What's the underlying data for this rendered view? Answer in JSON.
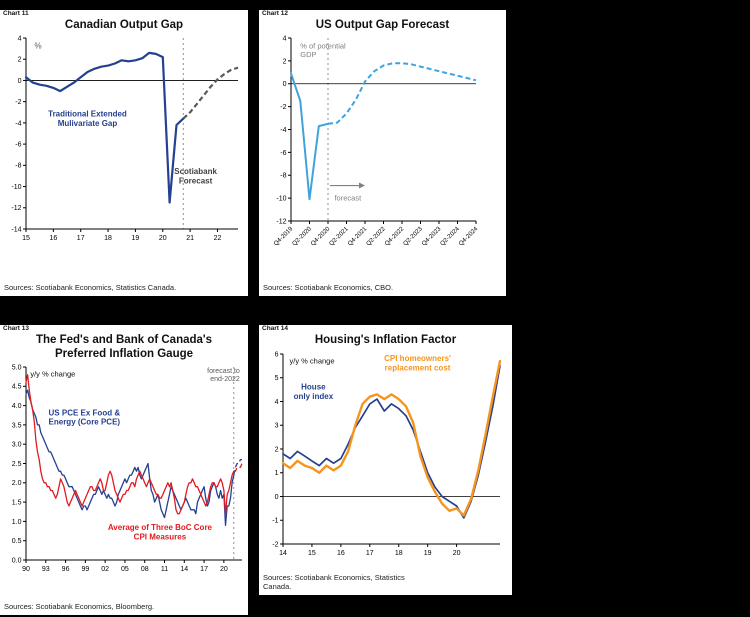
{
  "page": {
    "background": "#000000"
  },
  "chart_data": [
    {
      "type": "line",
      "corner_label": "Chart 11",
      "title": "Canadian Output Gap",
      "source": "Sources: Scotiabank Economics, Statistics Canada.",
      "ylabel": "%",
      "ylim": [
        -14,
        4
      ],
      "yticks": [
        4,
        2,
        0,
        -2,
        -4,
        -6,
        -8,
        -10,
        -12,
        -14
      ],
      "ydecimals": 0,
      "zero_line": true,
      "margins": {
        "l": 26,
        "r": 10,
        "t": 5,
        "b": 16
      },
      "x": {
        "count": 32,
        "rotate": false,
        "ticks": [
          {
            "i": 0,
            "label": "15"
          },
          {
            "i": 4,
            "label": "16"
          },
          {
            "i": 8,
            "label": "17"
          },
          {
            "i": 12,
            "label": "18"
          },
          {
            "i": 16,
            "label": "19"
          },
          {
            "i": 20,
            "label": "20"
          },
          {
            "i": 24,
            "label": "21"
          },
          {
            "i": 28,
            "label": "22"
          }
        ]
      },
      "vlines": [
        23
      ],
      "series": [
        {
          "name": "Traditional Extended Mulivariate Gap",
          "color": "#25408f",
          "dash_color": "#595959",
          "width": 2.2,
          "dash_from": 23,
          "values": [
            0.3,
            -0.2,
            -0.4,
            -0.5,
            -0.7,
            -1.0,
            -0.6,
            -0.2,
            0.3,
            0.8,
            1.1,
            1.3,
            1.4,
            1.6,
            1.9,
            1.8,
            1.9,
            2.1,
            2.6,
            2.5,
            2.2,
            -11.5,
            -4.2,
            -3.6,
            -3.0,
            -2.2,
            -1.4,
            -0.6,
            0.1,
            0.6,
            1.0,
            1.2
          ]
        }
      ],
      "annotations": [
        {
          "text": "%",
          "x": 0.04,
          "y": 3.0,
          "color": "#595959",
          "bold": false,
          "size": 8,
          "anchor": "start"
        },
        {
          "text": "Traditional Extended\nMulivariate Gap",
          "x": 0.29,
          "y": -3.4,
          "color": "#25408f",
          "bold": true,
          "size": 8,
          "anchor": "middle"
        },
        {
          "text": "Scotiabank\nForecast",
          "x": 0.8,
          "y": -8.8,
          "color": "#404040",
          "bold": true,
          "size": 8,
          "anchor": "middle"
        }
      ],
      "arrows": []
    },
    {
      "type": "line",
      "corner_label": "Chart 12",
      "title": "US Output Gap Forecast",
      "source": "Sources: Scotiabank Economics, CBO.",
      "ylabel": "% of potential GDP",
      "ylim": [
        -12,
        4
      ],
      "yticks": [
        4,
        2,
        0,
        -2,
        -4,
        -6,
        -8,
        -10,
        -12
      ],
      "ydecimals": 0,
      "zero_line": true,
      "margins": {
        "l": 32,
        "r": 30,
        "t": 5,
        "b": 42
      },
      "x": {
        "count": 21,
        "rotate": true,
        "ticks": [
          {
            "i": 0,
            "label": "Q4-2019"
          },
          {
            "i": 2,
            "label": "Q2-2020"
          },
          {
            "i": 4,
            "label": "Q4-2020"
          },
          {
            "i": 6,
            "label": "Q2-2021"
          },
          {
            "i": 8,
            "label": "Q4-2021"
          },
          {
            "i": 10,
            "label": "Q2-2022"
          },
          {
            "i": 12,
            "label": "Q4-2022"
          },
          {
            "i": 14,
            "label": "Q2-2023"
          },
          {
            "i": 16,
            "label": "Q4-2023"
          },
          {
            "i": 18,
            "label": "Q2-2024"
          },
          {
            "i": 20,
            "label": "Q4-2024"
          }
        ]
      },
      "vlines": [
        4
      ],
      "series": [
        {
          "name": "US output gap",
          "color": "#3fa3dc",
          "width": 2,
          "dash_from": 4,
          "values": [
            0.9,
            -1.5,
            -10.1,
            -3.7,
            -3.5,
            -3.4,
            -2.6,
            -1.4,
            0.2,
            1.1,
            1.6,
            1.8,
            1.8,
            1.7,
            1.5,
            1.3,
            1.1,
            0.9,
            0.7,
            0.5,
            0.3
          ]
        }
      ],
      "annotations": [
        {
          "text": "% of potential\nGDP",
          "x": 0.05,
          "y": 3.1,
          "color": "#808080",
          "bold": false,
          "size": 7.5,
          "anchor": "start"
        },
        {
          "text": "forecast",
          "x": 0.235,
          "y": -10.2,
          "color": "#808080",
          "bold": false,
          "size": 7.5,
          "anchor": "start"
        }
      ],
      "arrows": [
        {
          "x1": 0.21,
          "y1": -8.9,
          "x2": 0.4,
          "y2": -8.9,
          "color": "#808080"
        }
      ]
    },
    {
      "type": "line",
      "corner_label": "Chart 13",
      "title": "The Fed's and Bank of Canada's\nPreferred Inflation Gauge",
      "source": "Sources: Scotiabank Economics, Bloomberg.",
      "ylabel": "y/y % change",
      "ylim": [
        0,
        5
      ],
      "yticks": [
        5.0,
        4.5,
        4.0,
        3.5,
        3.0,
        2.5,
        2.0,
        1.5,
        1.0,
        0.5,
        0.0
      ],
      "ydecimals": 1,
      "zero_line": false,
      "margins": {
        "l": 26,
        "r": 6,
        "t": 5,
        "b": 14
      },
      "x": {
        "count": 132,
        "rotate": false,
        "ticks": [
          {
            "i": 0,
            "label": "90"
          },
          {
            "i": 12,
            "label": "93"
          },
          {
            "i": 24,
            "label": "96"
          },
          {
            "i": 36,
            "label": "99"
          },
          {
            "i": 48,
            "label": "02"
          },
          {
            "i": 60,
            "label": "05"
          },
          {
            "i": 72,
            "label": "08"
          },
          {
            "i": 84,
            "label": "11"
          },
          {
            "i": 96,
            "label": "14"
          },
          {
            "i": 108,
            "label": "17"
          },
          {
            "i": 120,
            "label": "20"
          }
        ]
      },
      "vlines": [
        126
      ],
      "series": [
        {
          "name": "US PCE Ex Food & Energy (Core PCE)",
          "color": "#25408f",
          "width": 1.3,
          "dash_from": 126,
          "values": [
            4.3,
            4.4,
            4.2,
            4.1,
            3.9,
            3.8,
            3.7,
            3.5,
            3.5,
            3.3,
            3.2,
            3.1,
            3.0,
            2.9,
            2.8,
            2.8,
            2.7,
            2.6,
            2.5,
            2.4,
            2.3,
            2.3,
            2.2,
            2.2,
            2.1,
            2.0,
            1.9,
            1.9,
            1.9,
            1.8,
            1.7,
            1.6,
            1.5,
            1.4,
            1.3,
            1.4,
            1.4,
            1.3,
            1.4,
            1.5,
            1.6,
            1.7,
            1.7,
            1.8,
            1.9,
            1.8,
            1.7,
            1.8,
            1.7,
            1.6,
            1.7,
            1.6,
            1.6,
            1.5,
            1.4,
            1.5,
            1.7,
            1.8,
            1.9,
            2.0,
            2.1,
            2.0,
            2.1,
            2.2,
            2.2,
            2.3,
            2.4,
            2.3,
            2.4,
            2.2,
            2.1,
            2.2,
            2.3,
            2.4,
            2.5,
            2.1,
            1.8,
            1.7,
            1.5,
            1.6,
            1.7,
            1.5,
            1.3,
            1.2,
            1.1,
            1.3,
            1.5,
            1.7,
            1.9,
            1.8,
            1.7,
            1.6,
            1.5,
            1.4,
            1.3,
            1.4,
            1.5,
            1.6,
            1.5,
            1.4,
            1.3,
            1.3,
            1.3,
            1.2,
            1.5,
            1.6,
            1.7,
            1.8,
            1.9,
            1.6,
            1.4,
            1.5,
            1.8,
            1.9,
            2.0,
            1.9,
            1.7,
            1.6,
            1.8,
            1.6,
            1.7,
            0.9,
            1.4,
            1.4,
            1.6,
            2.0,
            2.2,
            2.4,
            2.5,
            2.5,
            2.6,
            2.6
          ]
        },
        {
          "name": "Average of Three BoC Core CPI Measures",
          "color": "#e11b22",
          "width": 1.3,
          "dash_from": 126,
          "values": [
            4.6,
            4.8,
            4.4,
            4.1,
            3.9,
            3.6,
            3.1,
            2.8,
            2.6,
            2.3,
            2.1,
            2.0,
            2.0,
            1.9,
            1.9,
            1.8,
            1.8,
            1.7,
            1.6,
            1.7,
            1.9,
            2.1,
            2.0,
            1.9,
            1.7,
            1.5,
            1.4,
            1.5,
            1.6,
            1.7,
            1.8,
            1.7,
            1.6,
            1.5,
            1.4,
            1.5,
            1.6,
            1.7,
            1.8,
            1.9,
            1.9,
            1.8,
            1.8,
            1.9,
            2.0,
            2.1,
            2.0,
            1.8,
            1.8,
            2.0,
            2.2,
            2.3,
            2.2,
            2.0,
            1.8,
            1.7,
            1.6,
            1.5,
            1.6,
            1.7,
            1.7,
            1.8,
            1.8,
            1.9,
            2.0,
            2.0,
            1.9,
            2.1,
            2.2,
            2.3,
            2.2,
            2.1,
            2.0,
            1.9,
            2.0,
            2.1,
            2.0,
            1.9,
            1.8,
            1.7,
            1.7,
            1.6,
            1.6,
            1.7,
            1.8,
            1.9,
            2.0,
            1.9,
            2.0,
            1.8,
            1.6,
            1.3,
            1.2,
            1.2,
            1.3,
            1.4,
            1.5,
            1.7,
            1.9,
            2.0,
            2.0,
            2.1,
            2.0,
            1.9,
            1.9,
            1.8,
            1.7,
            1.6,
            1.5,
            1.4,
            1.5,
            1.7,
            1.9,
            2.0,
            2.0,
            1.9,
            1.9,
            2.0,
            2.1,
            2.0,
            1.8,
            1.2,
            1.7,
            1.8,
            2.0,
            2.2,
            2.3,
            2.3,
            2.4,
            2.4,
            2.4,
            2.5
          ]
        }
      ],
      "annotations": [
        {
          "text": "y/y % change",
          "x": 0.02,
          "y": 4.75,
          "color": "#111111",
          "bold": false,
          "size": 7.5,
          "anchor": "start"
        },
        {
          "text": "US PCE Ex Food &\nEnergy (Core PCE)",
          "x": 0.27,
          "y": 3.75,
          "color": "#25408f",
          "bold": true,
          "size": 8,
          "anchor": "middle"
        },
        {
          "text": "Average of Three BoC Core\nCPI Measures",
          "x": 0.62,
          "y": 0.78,
          "color": "#e11b22",
          "bold": true,
          "size": 8,
          "anchor": "middle"
        },
        {
          "text": "forecast to\nend-2022",
          "x": 0.99,
          "y": 4.85,
          "color": "#595959",
          "bold": false,
          "size": 7,
          "anchor": "end"
        }
      ],
      "arrows": []
    },
    {
      "type": "line",
      "corner_label": "Chart 14",
      "title": "Housing's Inflation Factor",
      "source": "Sources: Scotiabank Economics, Statistics\nCanada.",
      "ylabel": "y/y % change",
      "ylim": [
        -2,
        6
      ],
      "yticks": [
        6,
        5,
        4,
        3,
        2,
        1,
        0,
        -1,
        -2
      ],
      "ydecimals": 0,
      "zero_line": true,
      "margins": {
        "l": 24,
        "r": 12,
        "t": 6,
        "b": 14
      },
      "x": {
        "count": 31,
        "rotate": false,
        "ticks": [
          {
            "i": 0,
            "label": "14"
          },
          {
            "i": 4,
            "label": "15"
          },
          {
            "i": 8,
            "label": "16"
          },
          {
            "i": 12,
            "label": "17"
          },
          {
            "i": 16,
            "label": "18"
          },
          {
            "i": 20,
            "label": "19"
          },
          {
            "i": 24,
            "label": "20"
          }
        ]
      },
      "vlines": [],
      "series": [
        {
          "name": "House only index",
          "color": "#25408f",
          "width": 1.7,
          "dash_from": null,
          "values": [
            1.8,
            1.6,
            1.9,
            1.7,
            1.5,
            1.3,
            1.6,
            1.4,
            1.6,
            2.2,
            2.9,
            3.4,
            3.9,
            4.1,
            3.6,
            3.9,
            3.7,
            3.4,
            2.8,
            1.9,
            1.0,
            0.4,
            0.0,
            -0.2,
            -0.4,
            -0.9,
            -0.2,
            0.9,
            2.3,
            3.8,
            5.5
          ]
        },
        {
          "name": "CPI homeowners' replacement cost",
          "color": "#f7941d",
          "width": 2.4,
          "dash_from": null,
          "values": [
            1.4,
            1.2,
            1.5,
            1.3,
            1.2,
            1.0,
            1.3,
            1.1,
            1.3,
            1.9,
            3.0,
            3.9,
            4.2,
            4.3,
            4.1,
            4.3,
            4.1,
            3.8,
            3.1,
            1.7,
            0.8,
            0.2,
            -0.3,
            -0.6,
            -0.5,
            -0.8,
            -0.1,
            1.1,
            2.6,
            4.2,
            5.7
          ]
        }
      ],
      "annotations": [
        {
          "text": "y/y % change",
          "x": 0.03,
          "y": 5.6,
          "color": "#111111",
          "bold": false,
          "size": 7.5,
          "anchor": "start"
        },
        {
          "text": "House\nonly index",
          "x": 0.14,
          "y": 4.5,
          "color": "#25408f",
          "bold": true,
          "size": 8,
          "anchor": "middle"
        },
        {
          "text": "CPI homeowners'\nreplacement cost",
          "x": 0.62,
          "y": 5.7,
          "color": "#f7941d",
          "bold": true,
          "size": 8,
          "anchor": "middle"
        }
      ],
      "arrows": []
    }
  ]
}
